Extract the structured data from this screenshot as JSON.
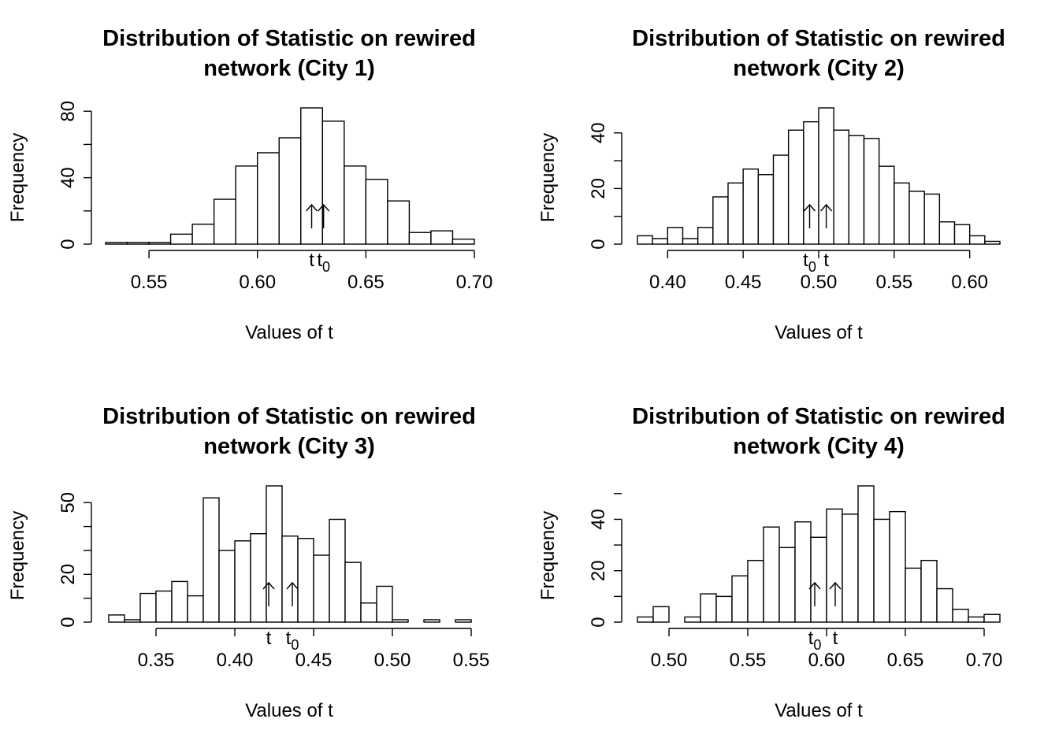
{
  "chart_data": [
    {
      "type": "bar",
      "title": "Distribution of Statistic on rewired network (City 1)",
      "title_lines": [
        "Distribution of Statistic on rewired",
        "network (City 1)"
      ],
      "xlabel": "Values of t",
      "ylabel": "Frequency",
      "xlim": [
        0.53,
        0.7
      ],
      "ylim": [
        0,
        82
      ],
      "xticks": [
        0.55,
        0.6,
        0.65,
        0.7
      ],
      "xtick_labels": [
        "0.55",
        "0.60",
        "0.65",
        "0.70"
      ],
      "yticks": [
        0,
        40,
        80
      ],
      "ytick_labels": [
        "0",
        "40",
        "80"
      ],
      "bin_edges": [
        0.53,
        0.54,
        0.55,
        0.56,
        0.57,
        0.58,
        0.59,
        0.6,
        0.61,
        0.62,
        0.63,
        0.64,
        0.65,
        0.66,
        0.67,
        0.68,
        0.69,
        0.7
      ],
      "counts": [
        1,
        1,
        1,
        6,
        12,
        27,
        47,
        55,
        64,
        82,
        74,
        47,
        39,
        26,
        7,
        8,
        3
      ],
      "markers": [
        {
          "label": "t",
          "sub": "",
          "value": 0.625
        },
        {
          "label": "t",
          "sub": "0",
          "value": 0.6305
        }
      ]
    },
    {
      "type": "bar",
      "title": "Distribution of Statistic on rewired network (City 2)",
      "title_lines": [
        "Distribution of Statistic on rewired",
        "network (City 2)"
      ],
      "xlabel": "Values of t",
      "ylabel": "Frequency",
      "xlim": [
        0.38,
        0.62
      ],
      "ylim": [
        0,
        49
      ],
      "xticks": [
        0.4,
        0.45,
        0.5,
        0.55,
        0.6
      ],
      "xtick_labels": [
        "0.40",
        "0.45",
        "0.50",
        "0.55",
        "0.60"
      ],
      "yticks": [
        0,
        20,
        40
      ],
      "ytick_labels": [
        "0",
        "20",
        "40"
      ],
      "bin_edges": [
        0.38,
        0.39,
        0.4,
        0.41,
        0.42,
        0.43,
        0.44,
        0.45,
        0.46,
        0.47,
        0.48,
        0.49,
        0.5,
        0.51,
        0.52,
        0.53,
        0.54,
        0.55,
        0.56,
        0.57,
        0.58,
        0.59,
        0.6,
        0.61,
        0.62
      ],
      "counts": [
        3,
        2,
        6,
        2,
        6,
        17,
        22,
        27,
        25,
        32,
        41,
        44,
        49,
        41,
        39,
        38,
        28,
        22,
        19,
        18,
        8,
        7,
        3,
        1
      ],
      "markers": [
        {
          "label": "t",
          "sub": "0",
          "value": 0.494
        },
        {
          "label": "t",
          "sub": "",
          "value": 0.505
        }
      ]
    },
    {
      "type": "bar",
      "title": "Distribution of Statistic on rewired network (City 3)",
      "title_lines": [
        "Distribution of Statistic on rewired",
        "network (City 3)"
      ],
      "xlabel": "Values of t",
      "ylabel": "Frequency",
      "xlim": [
        0.32,
        0.55
      ],
      "ylim": [
        0,
        57
      ],
      "xticks": [
        0.35,
        0.4,
        0.45,
        0.5,
        0.55
      ],
      "xtick_labels": [
        "0.35",
        "0.40",
        "0.45",
        "0.50",
        "0.55"
      ],
      "yticks": [
        0,
        20,
        50
      ],
      "ytick_labels": [
        "0",
        "20",
        "50"
      ],
      "bin_edges": [
        0.32,
        0.33,
        0.34,
        0.35,
        0.36,
        0.37,
        0.38,
        0.39,
        0.4,
        0.41,
        0.42,
        0.43,
        0.44,
        0.45,
        0.46,
        0.47,
        0.48,
        0.49,
        0.5,
        0.51,
        0.52,
        0.53,
        0.54,
        0.55
      ],
      "counts": [
        3,
        1,
        12,
        13,
        17,
        11,
        52,
        30,
        34,
        37,
        57,
        36,
        35,
        28,
        43,
        25,
        8,
        15,
        1,
        0,
        1,
        0,
        1
      ],
      "markers": [
        {
          "label": "t",
          "sub": "",
          "value": 0.4215
        },
        {
          "label": "t",
          "sub": "0",
          "value": 0.4365
        }
      ]
    },
    {
      "type": "bar",
      "title": "Distribution of Statistic on rewired network (City 4)",
      "title_lines": [
        "Distribution of Statistic on rewired",
        "network (City 4)"
      ],
      "xlabel": "Values of t",
      "ylabel": "Frequency",
      "xlim": [
        0.48,
        0.71
      ],
      "ylim": [
        0,
        53
      ],
      "xticks": [
        0.5,
        0.55,
        0.6,
        0.65,
        0.7
      ],
      "xtick_labels": [
        "0.50",
        "0.55",
        "0.60",
        "0.65",
        "0.70"
      ],
      "yticks": [
        0,
        20,
        40
      ],
      "ytick_labels": [
        "0",
        "20",
        "40"
      ],
      "bin_edges": [
        0.48,
        0.49,
        0.5,
        0.51,
        0.52,
        0.53,
        0.54,
        0.55,
        0.56,
        0.57,
        0.58,
        0.59,
        0.6,
        0.61,
        0.62,
        0.63,
        0.64,
        0.65,
        0.66,
        0.67,
        0.68,
        0.69,
        0.7,
        0.71
      ],
      "counts": [
        2,
        6,
        0,
        2,
        11,
        10,
        18,
        24,
        37,
        29,
        39,
        33,
        44,
        42,
        53,
        40,
        43,
        21,
        24,
        13,
        5,
        2,
        3
      ],
      "markers": [
        {
          "label": "t",
          "sub": "0",
          "value": 0.5925
        },
        {
          "label": "t",
          "sub": "",
          "value": 0.6055
        }
      ]
    }
  ]
}
